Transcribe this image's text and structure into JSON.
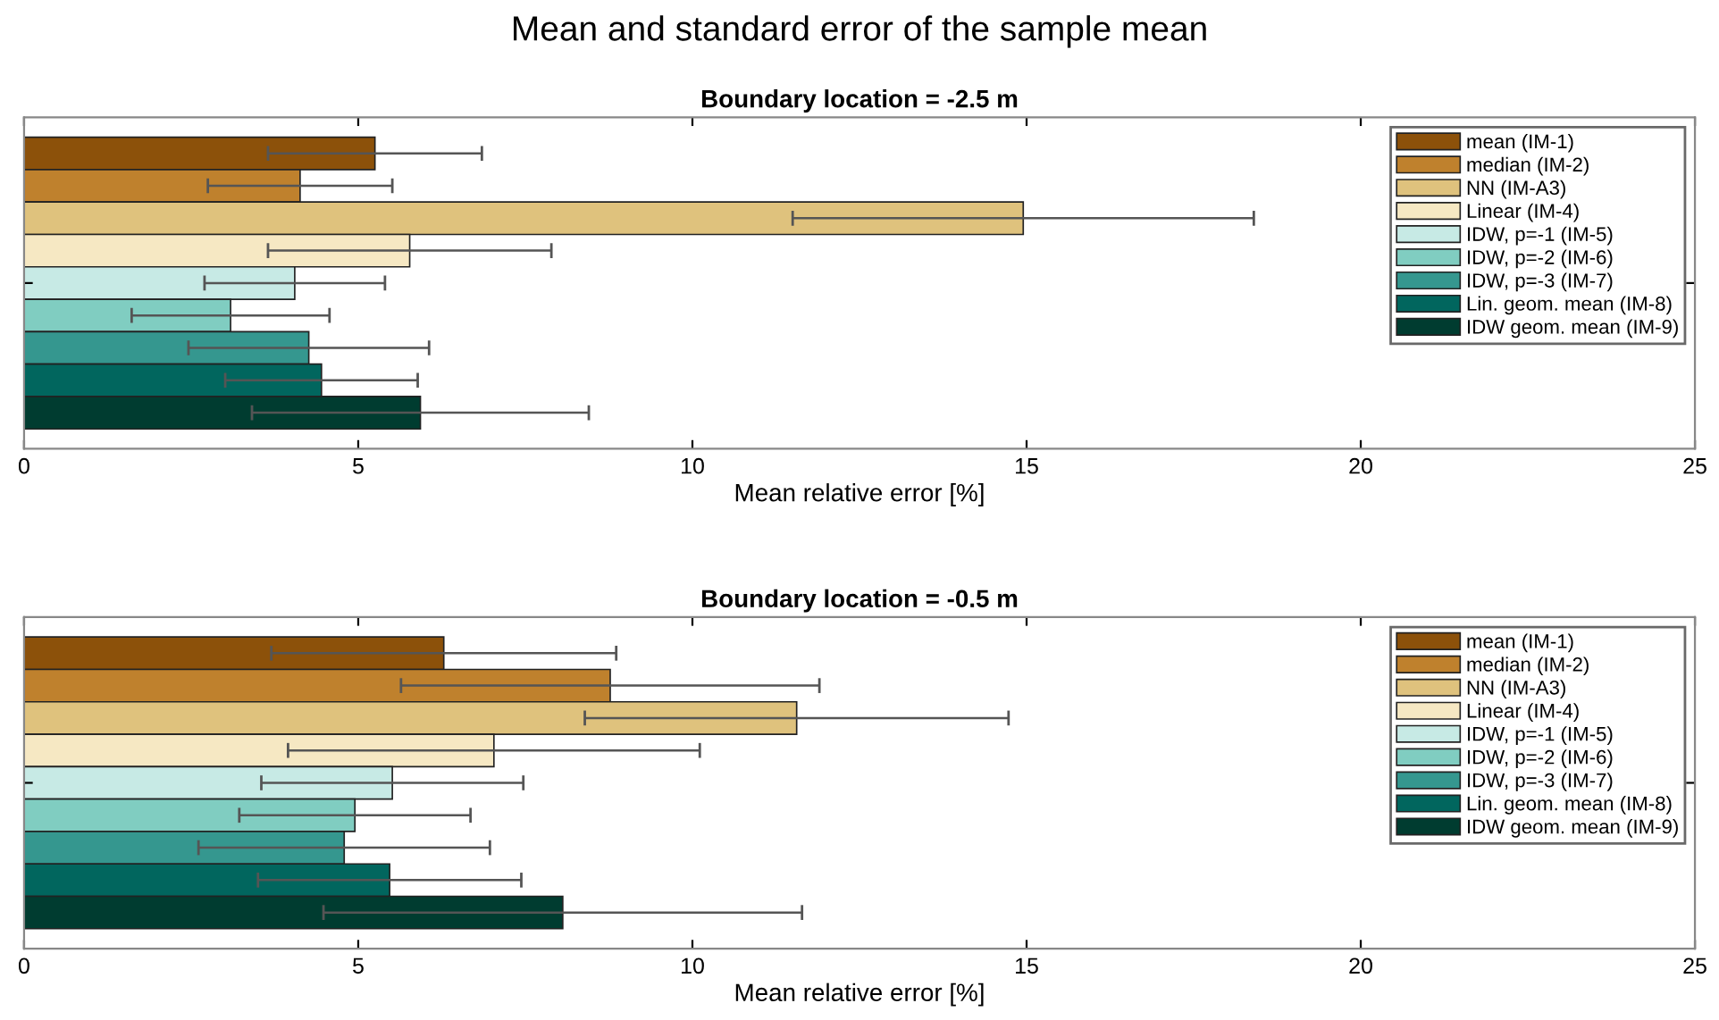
{
  "chart_data": [
    {
      "type": "bar",
      "orientation": "horizontal",
      "annotations": [
        "Mean and standard error of the sample mean"
      ],
      "title": "Boundary location = -2.5 m",
      "xlabel": "Mean relative error [%]",
      "categories": [
        null
      ],
      "xlim": [
        0,
        25
      ],
      "xticks": [
        0,
        5,
        10,
        15,
        20,
        25
      ],
      "grid": false,
      "legend": "top right",
      "tick_labels": "x",
      "series": [
        {
          "name": "mean (IM-1)",
          "color": "#8c510a",
          "values": [
            5.25
          ],
          "errors": [
            1.6
          ]
        },
        {
          "name": "median (IM-2)",
          "color": "#bf812d",
          "values": [
            4.13
          ],
          "errors": [
            1.38
          ]
        },
        {
          "name": "NN (IM-A3)",
          "color": "#dfc27d",
          "values": [
            14.95
          ],
          "errors": [
            3.45
          ]
        },
        {
          "name": "Linear (IM-4)",
          "color": "#f6e8c3",
          "values": [
            5.77
          ],
          "errors": [
            2.12
          ]
        },
        {
          "name": "IDW, p=-1 (IM-5)",
          "color": "#c7eae5",
          "values": [
            4.05
          ],
          "errors": [
            1.35
          ]
        },
        {
          "name": "IDW, p=-2 (IM-6)",
          "color": "#80cdc1",
          "values": [
            3.09
          ],
          "errors": [
            1.48
          ]
        },
        {
          "name": "IDW, p=-3 (IM-7)",
          "color": "#35978f",
          "values": [
            4.26
          ],
          "errors": [
            1.8
          ]
        },
        {
          "name": "Lin. geom. mean (IM-8)",
          "color": "#01665e",
          "values": [
            4.45
          ],
          "errors": [
            1.44
          ]
        },
        {
          "name": "IDW geom. mean (IM-9)",
          "color": "#003c30",
          "values": [
            5.93
          ],
          "errors": [
            2.52
          ]
        }
      ]
    },
    {
      "type": "bar",
      "orientation": "horizontal",
      "title": "Boundary location = -0.5 m",
      "xlabel": "Mean relative error [%]",
      "categories": [
        null
      ],
      "xlim": [
        0,
        25
      ],
      "xticks": [
        0,
        5,
        10,
        15,
        20,
        25
      ],
      "grid": false,
      "legend": "top right",
      "tick_labels": "x",
      "series": [
        {
          "name": "mean (IM-1)",
          "color": "#8c510a",
          "values": [
            6.28
          ],
          "errors": [
            2.58
          ]
        },
        {
          "name": "median (IM-2)",
          "color": "#bf812d",
          "values": [
            8.77
          ],
          "errors": [
            3.13
          ]
        },
        {
          "name": "NN (IM-A3)",
          "color": "#dfc27d",
          "values": [
            11.56
          ],
          "errors": [
            3.17
          ]
        },
        {
          "name": "Linear (IM-4)",
          "color": "#f6e8c3",
          "values": [
            7.03
          ],
          "errors": [
            3.08
          ]
        },
        {
          "name": "IDW, p=-1 (IM-5)",
          "color": "#c7eae5",
          "values": [
            5.51
          ],
          "errors": [
            1.96
          ]
        },
        {
          "name": "IDW, p=-2 (IM-6)",
          "color": "#80cdc1",
          "values": [
            4.95
          ],
          "errors": [
            1.73
          ]
        },
        {
          "name": "IDW, p=-3 (IM-7)",
          "color": "#35978f",
          "values": [
            4.79
          ],
          "errors": [
            2.18
          ]
        },
        {
          "name": "Lin. geom. mean (IM-8)",
          "color": "#01665e",
          "values": [
            5.47
          ],
          "errors": [
            1.97
          ]
        },
        {
          "name": "IDW geom. mean (IM-9)",
          "color": "#003c30",
          "values": [
            8.06
          ],
          "errors": [
            3.58
          ]
        }
      ]
    }
  ]
}
